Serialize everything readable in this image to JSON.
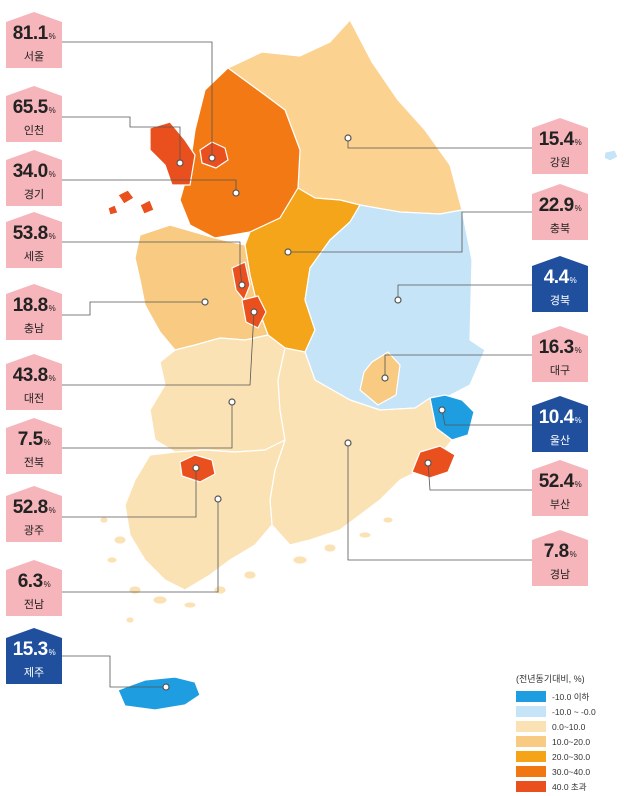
{
  "regions": [
    {
      "id": "seoul",
      "name": "서울",
      "value": "81.1",
      "dir": "up"
    },
    {
      "id": "incheon",
      "name": "인천",
      "value": "65.5",
      "dir": "up"
    },
    {
      "id": "gyeonggi",
      "name": "경기",
      "value": "34.0",
      "dir": "up"
    },
    {
      "id": "sejong",
      "name": "세종",
      "value": "53.8",
      "dir": "up"
    },
    {
      "id": "chungnam",
      "name": "충남",
      "value": "18.8",
      "dir": "up"
    },
    {
      "id": "daejeon",
      "name": "대전",
      "value": "43.8",
      "dir": "up"
    },
    {
      "id": "jeonbuk",
      "name": "전북",
      "value": "7.5",
      "dir": "up"
    },
    {
      "id": "gwangju",
      "name": "광주",
      "value": "52.8",
      "dir": "up"
    },
    {
      "id": "jeonnam",
      "name": "전남",
      "value": "6.3",
      "dir": "up"
    },
    {
      "id": "jeju",
      "name": "제주",
      "value": "15.3",
      "dir": "down"
    },
    {
      "id": "gangwon",
      "name": "강원",
      "value": "15.4",
      "dir": "up"
    },
    {
      "id": "chungbuk",
      "name": "충북",
      "value": "22.9",
      "dir": "up"
    },
    {
      "id": "gyeongbuk",
      "name": "경북",
      "value": "4.4",
      "dir": "down"
    },
    {
      "id": "daegu",
      "name": "대구",
      "value": "16.3",
      "dir": "up"
    },
    {
      "id": "ulsan",
      "name": "울산",
      "value": "10.4",
      "dir": "down"
    },
    {
      "id": "busan",
      "name": "부산",
      "value": "52.4",
      "dir": "up"
    },
    {
      "id": "gyeongnam",
      "name": "경남",
      "value": "7.8",
      "dir": "up"
    }
  ],
  "unit": "%",
  "colors": {
    "label_up": "#f6b5ba",
    "label_down": "#1f4f9d"
  },
  "legend": {
    "title": "(전년동기대비, %)",
    "items": [
      {
        "label": "-10.0 이하",
        "color": "#1e9de0"
      },
      {
        "label": "-10.0 ~ -0.0",
        "color": "#c5e4f7"
      },
      {
        "label": "0.0~10.0",
        "color": "#fbe2b4"
      },
      {
        "label": "10.0~20.0",
        "color": "#f8ca82"
      },
      {
        "label": "20.0~30.0",
        "color": "#f4a416"
      },
      {
        "label": "30.0~40.0",
        "color": "#f07712"
      },
      {
        "label": "40.0 초과",
        "color": "#e9501d"
      }
    ]
  }
}
